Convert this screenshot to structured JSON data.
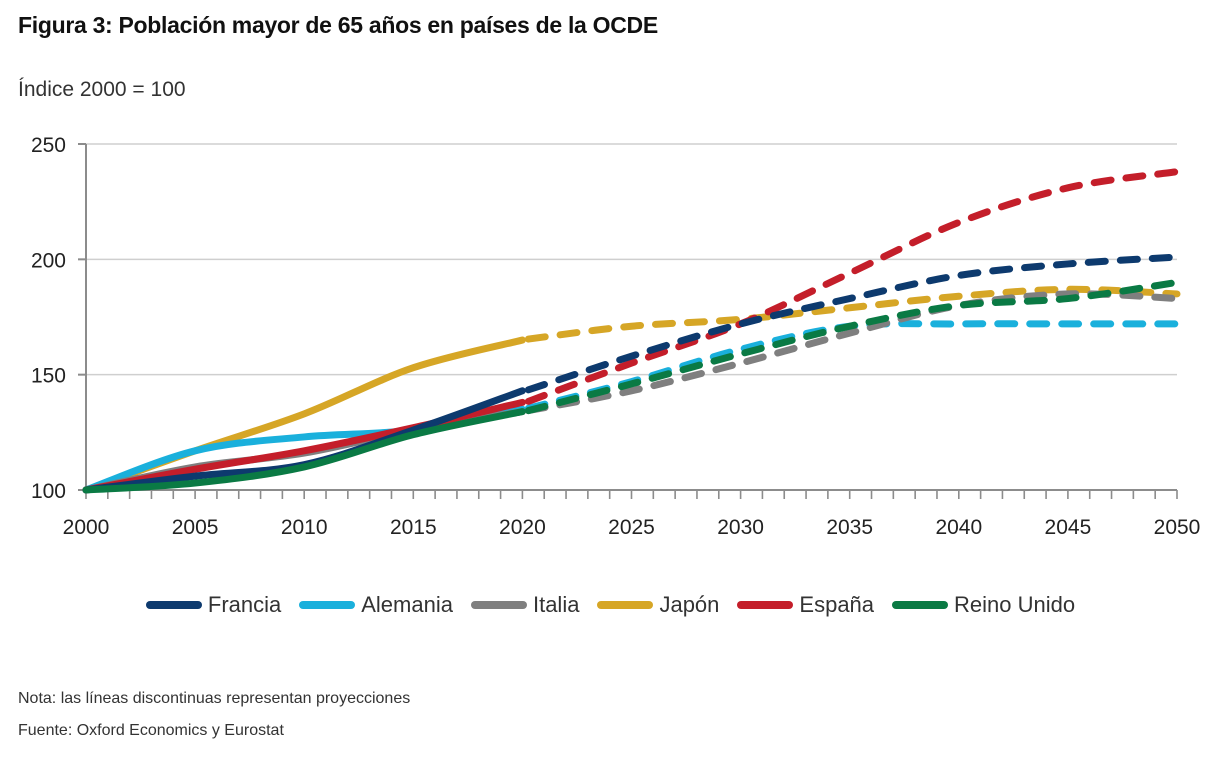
{
  "header": {
    "title": "Figura 3: Población mayor de 65 años en países de la OCDE",
    "subtitle": "Índice 2000 = 100"
  },
  "footer": {
    "note": "Nota: las líneas discontinuas representan proyecciones",
    "source": "Fuente: Oxford Economics y Eurostat"
  },
  "chart_data": {
    "type": "line",
    "title": "Figura 3: Población mayor de 65 años en países de la OCDE",
    "ylabel": "Índice 2000 = 100",
    "xlabel": "",
    "xlim": [
      2000,
      2050
    ],
    "ylim": [
      100,
      250
    ],
    "yticks": [
      100,
      150,
      200,
      250
    ],
    "xticks": [
      2000,
      2005,
      2010,
      2015,
      2020,
      2025,
      2030,
      2035,
      2040,
      2045,
      2050
    ],
    "grid": "horizontal",
    "legend_position": "bottom",
    "projection_start": 2020,
    "projection_style": "dashed",
    "x": [
      2000,
      2005,
      2010,
      2015,
      2020,
      2025,
      2030,
      2035,
      2040,
      2045,
      2050
    ],
    "series": [
      {
        "name": "Francia",
        "color": "#0d3a6e",
        "values": [
          100,
          106,
          111,
          126,
          143,
          158,
          172,
          183,
          193,
          198,
          201
        ]
      },
      {
        "name": "Alemania",
        "color": "#1ab0dc",
        "values": [
          100,
          117,
          123,
          126,
          135,
          147,
          161,
          171,
          172,
          172,
          172
        ]
      },
      {
        "name": "Italia",
        "color": "#7f7f7f",
        "values": [
          100,
          110,
          116,
          126,
          134,
          143,
          155,
          168,
          180,
          185,
          183
        ]
      },
      {
        "name": "Japón",
        "color": "#d6a626",
        "values": [
          100,
          117,
          133,
          153,
          165,
          171,
          174,
          179,
          184,
          187,
          185
        ]
      },
      {
        "name": "España",
        "color": "#c41e2a",
        "values": [
          100,
          109,
          117,
          127,
          138,
          155,
          172,
          194,
          216,
          231,
          238
        ]
      },
      {
        "name": "Reino Unido",
        "color": "#0a7a44",
        "values": [
          100,
          103,
          110,
          124,
          134,
          146,
          159,
          171,
          180,
          183,
          190
        ]
      }
    ]
  }
}
